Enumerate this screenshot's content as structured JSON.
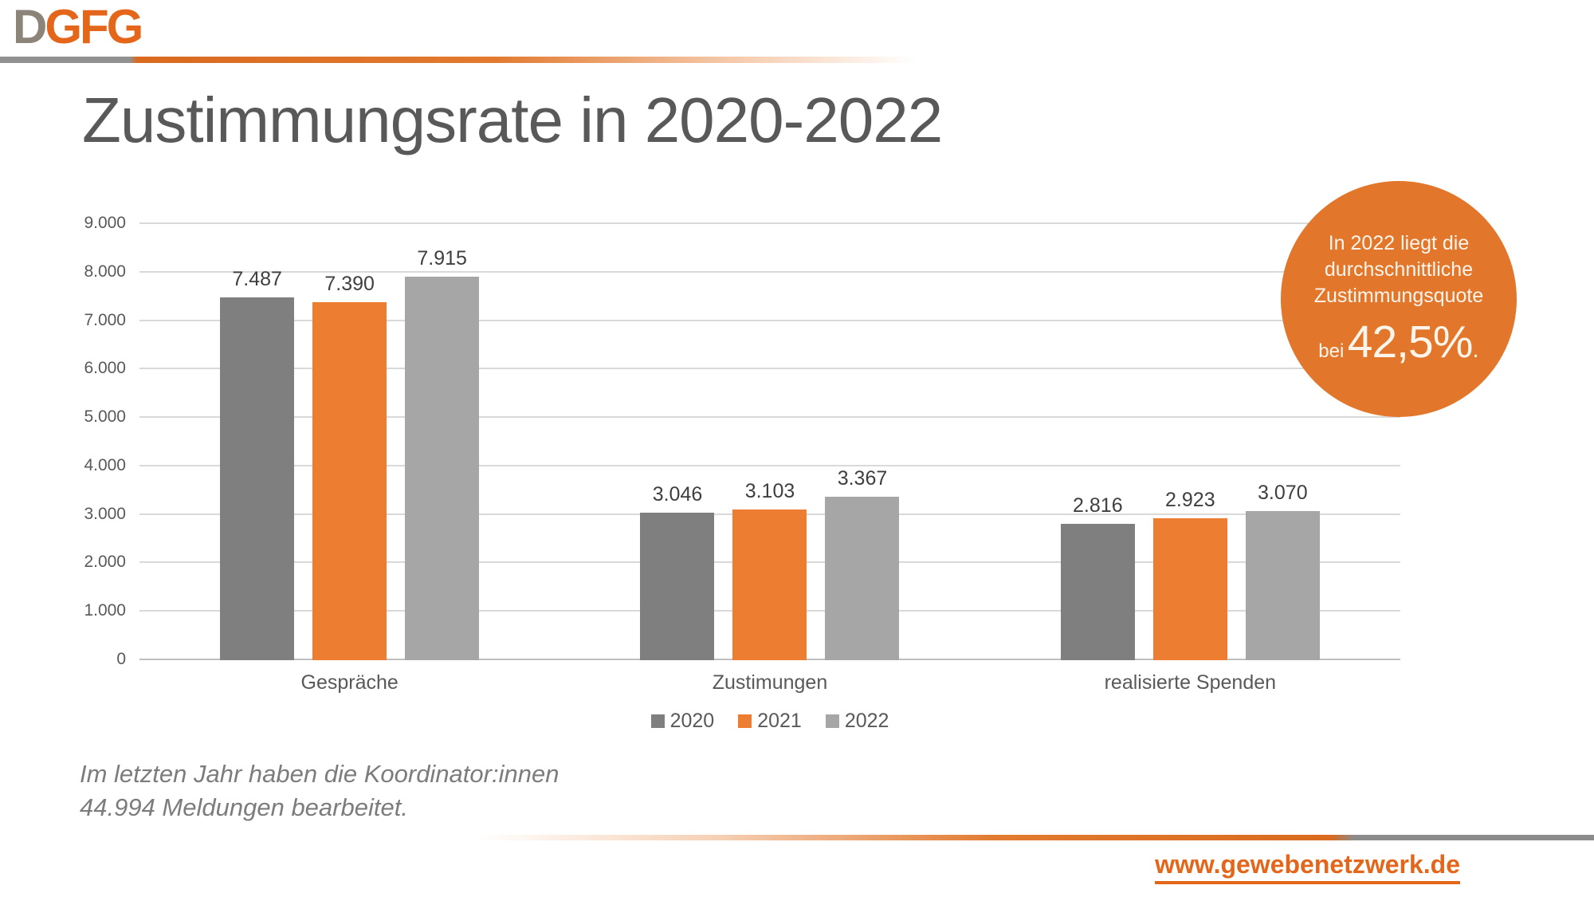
{
  "brand": {
    "logo_gray": "D",
    "logo_orange": "GFG"
  },
  "title": "Zustimmungsrate in 2020-2022",
  "chart_data": {
    "type": "bar",
    "categories": [
      "Gespräche",
      "Zustimungen",
      "realisierte Spenden"
    ],
    "series": [
      {
        "name": "2020",
        "color": "#7F7F7F",
        "values": [
          7487,
          3046,
          2816
        ]
      },
      {
        "name": "2021",
        "color": "#ED7D31",
        "values": [
          7390,
          3103,
          2923
        ]
      },
      {
        "name": "2022",
        "color": "#A6A6A6",
        "values": [
          7915,
          3367,
          3070
        ]
      }
    ],
    "title": "",
    "xlabel": "",
    "ylabel": "",
    "ylim": [
      0,
      9000
    ],
    "ytick_step": 1000,
    "ytick_labels": [
      "0",
      "1.000",
      "2.000",
      "3.000",
      "4.000",
      "5.000",
      "6.000",
      "7.000",
      "8.000",
      "9.000"
    ],
    "grid": true,
    "legend_position": "bottom",
    "number_format": "de-thousands-dot"
  },
  "callout": {
    "lines": [
      "In 2022 liegt die",
      "durchschnittliche",
      "Zustimmungsquote"
    ],
    "prefix": "bei",
    "big_value": "42,5%",
    "suffix": ".",
    "background": "#E2772C"
  },
  "note": {
    "line1": "Im letzten Jahr haben die Koordinator:innen",
    "line2": "44.994 Meldungen bearbeitet."
  },
  "footer": {
    "url": "www.gewebenetzwerk.de"
  },
  "colors": {
    "title_text": "#595959",
    "axis_text": "#595959",
    "data_label": "#3F3F3F",
    "gridline": "#D9D9D9",
    "baseline": "#BFBFBF",
    "logo_gray": "#8C8478",
    "logo_orange": "#E3661A",
    "rule_gray": "#919191",
    "rule_orange": "#D96A1E"
  }
}
